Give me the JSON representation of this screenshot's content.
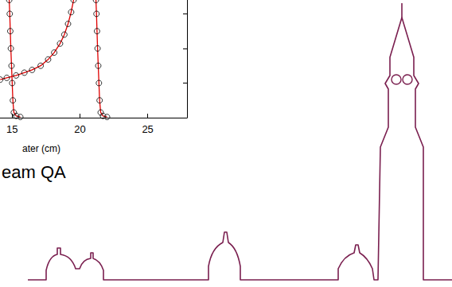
{
  "chart_data": {
    "type": "line",
    "x_label": "ater (cm)",
    "xlim": [
      14.1,
      27.9
    ],
    "xticks": [
      15,
      20,
      25
    ],
    "ylim": [
      0,
      3.4
    ],
    "yticks": [
      0,
      1,
      2,
      3
    ],
    "tick_labels": "x",
    "grid": false,
    "series": [
      {
        "color": "#e00000",
        "marker": "circle",
        "x": [
          14.12,
          14.6,
          15.29,
          15.9,
          16.47,
          17.1,
          17.65,
          18.1,
          18.53,
          18.85,
          19.12,
          19.35,
          19.53
        ],
        "values": [
          1.1,
          1.15,
          1.22,
          1.3,
          1.38,
          1.5,
          1.68,
          1.88,
          2.14,
          2.4,
          2.71,
          3.05,
          3.4
        ]
      },
      {
        "color": "#e00000",
        "marker": "circle",
        "x": [
          14.78,
          14.82,
          14.86,
          14.9,
          14.95,
          15.0,
          15.05,
          15.12,
          15.3,
          15.6
        ],
        "values": [
          3.4,
          3.0,
          2.5,
          2.0,
          1.5,
          1.0,
          0.5,
          0.15,
          0.05,
          0.02
        ]
      },
      {
        "color": "#e00000",
        "marker": "circle",
        "x": [
          21.18,
          21.22,
          21.26,
          21.3,
          21.35,
          21.4,
          21.45,
          21.53,
          21.7,
          22.0
        ],
        "values": [
          3.4,
          3.0,
          2.5,
          2.0,
          1.5,
          1.0,
          0.5,
          0.15,
          0.05,
          0.02
        ]
      }
    ]
  },
  "slide_text": "eam QA"
}
